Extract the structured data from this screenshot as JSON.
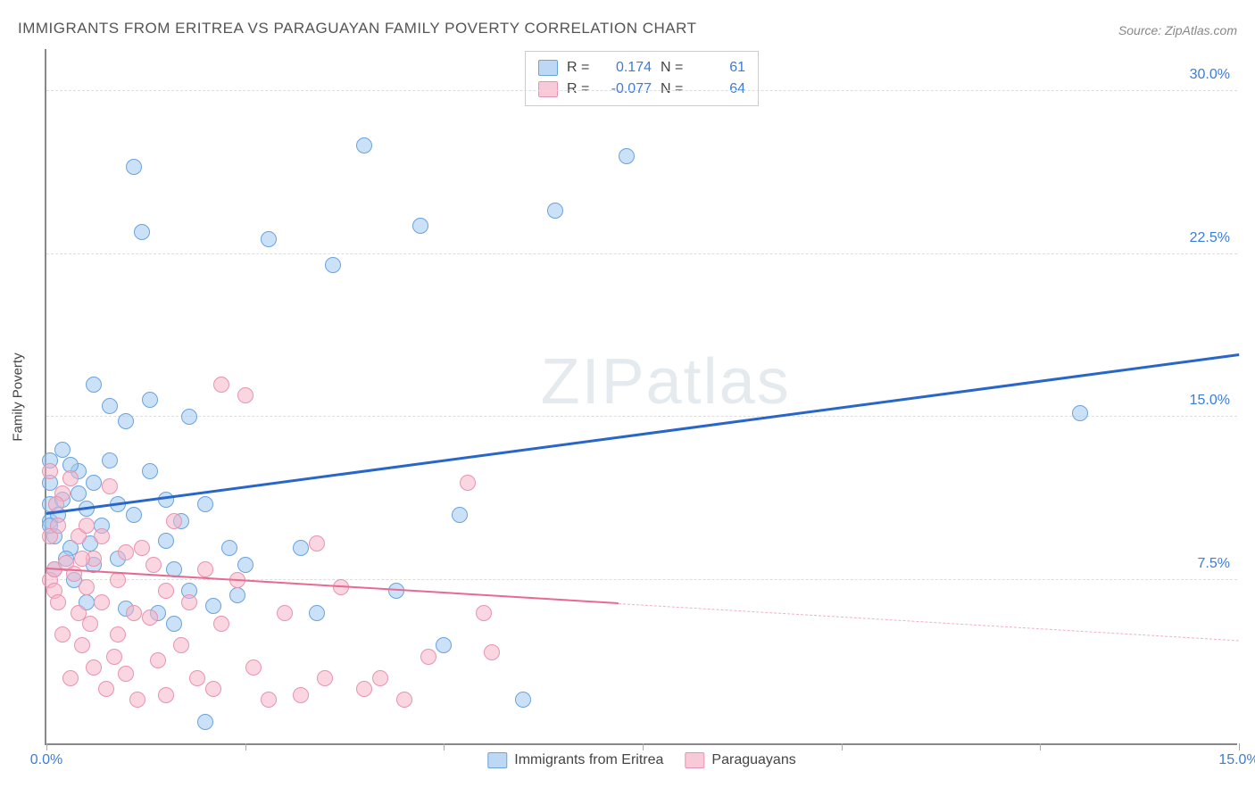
{
  "title": "IMMIGRANTS FROM ERITREA VS PARAGUAYAN FAMILY POVERTY CORRELATION CHART",
  "source": "Source: ZipAtlas.com",
  "watermark_zip": "ZIP",
  "watermark_atlas": "atlas",
  "y_axis_label": "Family Poverty",
  "chart": {
    "type": "scatter",
    "xlim": [
      0,
      15
    ],
    "ylim": [
      0,
      32
    ],
    "x_ticks": [
      0,
      2.5,
      5,
      7.5,
      10,
      12.5,
      15
    ],
    "x_tick_labels": {
      "0": "0.0%",
      "15": "15.0%"
    },
    "y_ticks": [
      7.5,
      15.0,
      22.5,
      30.0
    ],
    "y_tick_labels": [
      "7.5%",
      "15.0%",
      "22.5%",
      "30.0%"
    ],
    "background_color": "#ffffff",
    "grid_color": "#dddddd",
    "colors": {
      "blue_fill": "rgba(160,200,240,0.55)",
      "blue_stroke": "#6aa3dd",
      "blue_line": "#2966c9",
      "pink_fill": "rgba(245,180,200,0.55)",
      "pink_stroke": "#e893af",
      "pink_line": "#e86a91",
      "tick_text": "#3b7dd8"
    },
    "marker_radius": 9,
    "series": [
      {
        "name": "Immigrants from Eritrea",
        "key": "blue",
        "R": "0.174",
        "N": "61",
        "trend": {
          "x1": 0,
          "y1": 10.5,
          "x2": 15,
          "y2": 17.8
        },
        "points": [
          [
            0.05,
            13.0
          ],
          [
            0.05,
            12.0
          ],
          [
            0.05,
            11.0
          ],
          [
            0.05,
            10.2
          ],
          [
            0.1,
            9.5
          ],
          [
            0.1,
            8.0
          ],
          [
            0.2,
            13.5
          ],
          [
            0.2,
            11.2
          ],
          [
            0.3,
            9.0
          ],
          [
            0.35,
            7.5
          ],
          [
            0.4,
            11.5
          ],
          [
            0.4,
            12.5
          ],
          [
            0.5,
            10.8
          ],
          [
            0.5,
            6.5
          ],
          [
            0.55,
            9.2
          ],
          [
            0.6,
            16.5
          ],
          [
            0.6,
            12.0
          ],
          [
            0.7,
            10.0
          ],
          [
            0.8,
            15.5
          ],
          [
            0.8,
            13.0
          ],
          [
            0.9,
            8.5
          ],
          [
            0.9,
            11.0
          ],
          [
            1.0,
            14.8
          ],
          [
            1.0,
            6.2
          ],
          [
            1.1,
            26.5
          ],
          [
            1.1,
            10.5
          ],
          [
            1.2,
            23.5
          ],
          [
            1.3,
            15.8
          ],
          [
            1.4,
            6.0
          ],
          [
            1.5,
            11.2
          ],
          [
            1.5,
            9.3
          ],
          [
            1.6,
            8.0
          ],
          [
            1.6,
            5.5
          ],
          [
            1.7,
            10.2
          ],
          [
            1.8,
            15.0
          ],
          [
            1.8,
            7.0
          ],
          [
            2.0,
            11.0
          ],
          [
            2.0,
            1.0
          ],
          [
            2.1,
            6.3
          ],
          [
            2.3,
            9.0
          ],
          [
            2.4,
            6.8
          ],
          [
            2.5,
            8.2
          ],
          [
            2.8,
            23.2
          ],
          [
            3.2,
            9.0
          ],
          [
            3.4,
            6.0
          ],
          [
            3.6,
            22.0
          ],
          [
            4.0,
            27.5
          ],
          [
            4.4,
            7.0
          ],
          [
            4.7,
            23.8
          ],
          [
            5.0,
            4.5
          ],
          [
            5.2,
            10.5
          ],
          [
            6.0,
            2.0
          ],
          [
            6.4,
            24.5
          ],
          [
            7.3,
            27.0
          ],
          [
            13.0,
            15.2
          ],
          [
            0.3,
            12.8
          ],
          [
            0.6,
            8.2
          ],
          [
            1.3,
            12.5
          ],
          [
            0.15,
            10.5
          ],
          [
            0.25,
            8.5
          ],
          [
            0.05,
            10.0
          ]
        ]
      },
      {
        "name": "Paraguayans",
        "key": "pink",
        "R": "-0.077",
        "N": "64",
        "trend_solid": {
          "x1": 0,
          "y1": 8.0,
          "x2": 7.2,
          "y2": 6.4
        },
        "trend_dash": {
          "x1": 7.2,
          "y1": 6.4,
          "x2": 15,
          "y2": 4.7
        },
        "points": [
          [
            0.05,
            7.5
          ],
          [
            0.05,
            9.5
          ],
          [
            0.1,
            8.0
          ],
          [
            0.1,
            7.0
          ],
          [
            0.15,
            10.0
          ],
          [
            0.15,
            6.5
          ],
          [
            0.2,
            11.5
          ],
          [
            0.2,
            5.0
          ],
          [
            0.25,
            8.3
          ],
          [
            0.3,
            12.2
          ],
          [
            0.3,
            3.0
          ],
          [
            0.35,
            7.8
          ],
          [
            0.4,
            9.5
          ],
          [
            0.4,
            6.0
          ],
          [
            0.45,
            4.5
          ],
          [
            0.5,
            10.0
          ],
          [
            0.5,
            7.2
          ],
          [
            0.55,
            5.5
          ],
          [
            0.6,
            8.5
          ],
          [
            0.6,
            3.5
          ],
          [
            0.7,
            9.5
          ],
          [
            0.7,
            6.5
          ],
          [
            0.75,
            2.5
          ],
          [
            0.8,
            11.8
          ],
          [
            0.85,
            4.0
          ],
          [
            0.9,
            7.5
          ],
          [
            0.9,
            5.0
          ],
          [
            1.0,
            8.8
          ],
          [
            1.0,
            3.2
          ],
          [
            1.1,
            6.0
          ],
          [
            1.15,
            2.0
          ],
          [
            1.2,
            9.0
          ],
          [
            1.3,
            5.8
          ],
          [
            1.4,
            3.8
          ],
          [
            1.5,
            7.0
          ],
          [
            1.5,
            2.2
          ],
          [
            1.6,
            10.2
          ],
          [
            1.7,
            4.5
          ],
          [
            1.8,
            6.5
          ],
          [
            1.9,
            3.0
          ],
          [
            2.0,
            8.0
          ],
          [
            2.1,
            2.5
          ],
          [
            2.2,
            16.5
          ],
          [
            2.2,
            5.5
          ],
          [
            2.4,
            7.5
          ],
          [
            2.5,
            16.0
          ],
          [
            2.6,
            3.5
          ],
          [
            2.8,
            2.0
          ],
          [
            3.0,
            6.0
          ],
          [
            3.2,
            2.2
          ],
          [
            3.4,
            9.2
          ],
          [
            3.5,
            3.0
          ],
          [
            3.7,
            7.2
          ],
          [
            4.0,
            2.5
          ],
          [
            4.2,
            3.0
          ],
          [
            4.5,
            2.0
          ],
          [
            4.8,
            4.0
          ],
          [
            5.3,
            12.0
          ],
          [
            5.5,
            6.0
          ],
          [
            5.6,
            4.2
          ],
          [
            0.05,
            12.5
          ],
          [
            0.45,
            8.5
          ],
          [
            1.35,
            8.2
          ],
          [
            0.12,
            11.0
          ]
        ]
      }
    ]
  },
  "legend": {
    "r_label": "R =",
    "n_label": "N =",
    "bottom": [
      {
        "key": "blue",
        "label": "Immigrants from Eritrea"
      },
      {
        "key": "pink",
        "label": "Paraguayans"
      }
    ]
  }
}
